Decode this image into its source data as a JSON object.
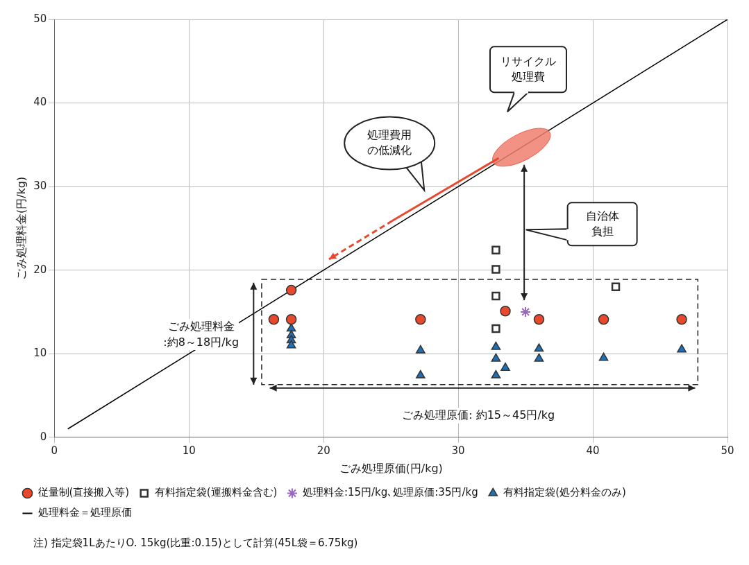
{
  "chart_data": {
    "type": "scatter",
    "xlabel": "ごみ処理原価(円/kg)",
    "ylabel": "ごみ処理料金(円/kg)",
    "xlim": [
      0,
      50
    ],
    "ylim": [
      0,
      50
    ],
    "xticks": [
      0,
      10,
      20,
      30,
      40,
      50
    ],
    "yticks": [
      0,
      10,
      20,
      30,
      40,
      50
    ],
    "grid": true,
    "legend": "bottom",
    "series": [
      {
        "name": "従量制(直接搬入等)",
        "type": "scatter",
        "marker": "circle",
        "color": "#e8482c",
        "x": [
          16.3,
          17.6,
          17.6,
          27.2,
          33.5,
          36.0,
          40.8,
          46.6
        ],
        "values": [
          14.1,
          17.6,
          14.1,
          14.1,
          15.1,
          14.1,
          14.1,
          14.1
        ]
      },
      {
        "name": "有料指定袋(運搬料金含む)",
        "type": "scatter",
        "marker": "square",
        "color": "#333333",
        "x": [
          32.8,
          32.8,
          32.8,
          32.8,
          41.7
        ],
        "values": [
          22.4,
          20.1,
          16.9,
          13.0,
          18.0
        ]
      },
      {
        "name": "処理料金:15円/kg､処理原価:35円/kg",
        "type": "scatter",
        "marker": "cross",
        "color": "#9966bb",
        "x": [
          35
        ],
        "values": [
          15
        ]
      },
      {
        "name": "有料指定袋(処分料金のみ)",
        "type": "scatter",
        "marker": "triangle",
        "color": "#1f6fb5",
        "x": [
          17.6,
          17.6,
          17.6,
          17.6,
          27.2,
          27.2,
          32.8,
          32.8,
          33.5,
          32.8,
          36.0,
          36.0,
          40.8,
          46.6
        ],
        "values": [
          13.0,
          12.2,
          11.6,
          11.0,
          10.4,
          7.4,
          10.8,
          9.4,
          8.3,
          7.4,
          10.6,
          9.4,
          9.5,
          10.5
        ]
      },
      {
        "name": "処理料金＝処理原価",
        "type": "line",
        "marker": "none",
        "color": "#000000",
        "x": [
          1,
          50
        ],
        "values": [
          1,
          50
        ]
      }
    ],
    "annotations": [
      "リサイクル処理費",
      "処理費用の低減化",
      "自治体負担",
      "ごみ処理料金\n:約8～18円/kg",
      "ごみ処理原価: 約15～45円/kg",
      "注) 指定袋1LあたりO. 15kg(比重:0.15)として計算(45L袋＝6.75kg)"
    ]
  }
}
